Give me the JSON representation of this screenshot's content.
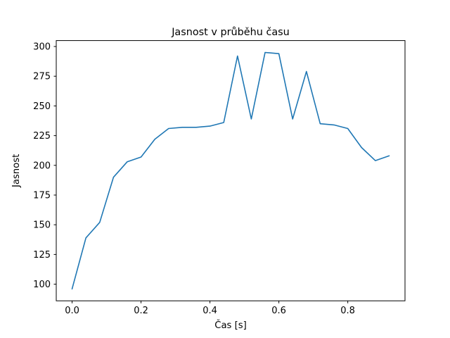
{
  "chart_data": {
    "type": "line",
    "title": "Jasnost v průběhu času",
    "xlabel": "Čas [s]",
    "ylabel": "Jasnost",
    "x": [
      0.0,
      0.04,
      0.08,
      0.12,
      0.16,
      0.2,
      0.24,
      0.28,
      0.32,
      0.36,
      0.4,
      0.44,
      0.48,
      0.52,
      0.56,
      0.6,
      0.64,
      0.68,
      0.72,
      0.76,
      0.8,
      0.84,
      0.88,
      0.92
    ],
    "y": [
      96,
      139,
      152,
      190,
      203,
      207,
      222,
      231,
      232,
      232,
      233,
      236,
      292,
      239,
      295,
      294,
      239,
      279,
      235,
      234,
      231,
      215,
      204,
      208
    ],
    "xlim": [
      -0.046,
      0.966
    ],
    "ylim": [
      86,
      305
    ],
    "xticks": [
      0.0,
      0.2,
      0.4,
      0.6,
      0.8
    ],
    "xtick_labels": [
      "0.0",
      "0.2",
      "0.4",
      "0.6",
      "0.8"
    ],
    "yticks": [
      100,
      125,
      150,
      175,
      200,
      225,
      250,
      275,
      300
    ],
    "ytick_labels": [
      "100",
      "125",
      "150",
      "175",
      "200",
      "225",
      "250",
      "275",
      "300"
    ],
    "line_color": "#1f77b4",
    "axis_color": "#000000",
    "grid": false,
    "legend_position": "none"
  }
}
